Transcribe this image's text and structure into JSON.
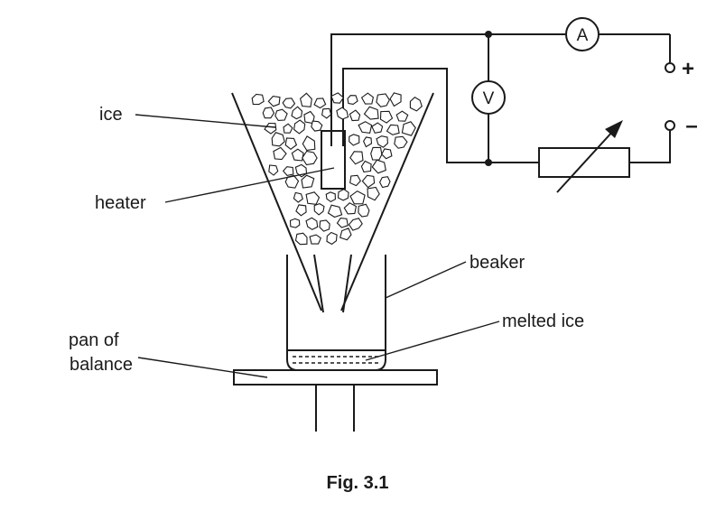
{
  "labels": {
    "ice": "ice",
    "heater": "heater",
    "beaker": "beaker",
    "melted_ice": "melted ice",
    "pan_of_balance_line1": "pan of",
    "pan_of_balance_line2": "balance"
  },
  "circuit": {
    "ammeter_symbol": "A",
    "voltmeter_symbol": "V",
    "positive_terminal": "+",
    "negative_terminal": "–"
  },
  "caption": "Fig. 3.1",
  "colors": {
    "ink": "#1a1a1a",
    "background": "#ffffff"
  }
}
